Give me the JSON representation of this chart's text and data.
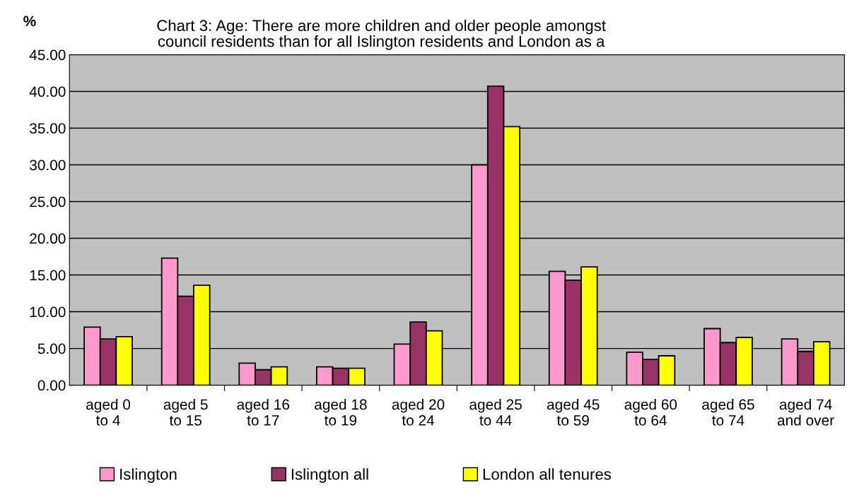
{
  "chart_data": {
    "type": "bar",
    "title": "Chart 3: Age: There are more children and older people amongst\ncouncil residents than for all Islington residents and London as a",
    "ylabel": "%",
    "categories": [
      "aged 0\nto 4",
      "aged 5\nto 15",
      "aged 16\nto 17",
      "aged 18\nto 19",
      "aged 20\nto 24",
      "aged 25\nto 44",
      "aged 45\nto 59",
      "aged 60\nto 64",
      "aged 65\nto 74",
      "aged 74\nand over"
    ],
    "series": [
      {
        "name": "Islington",
        "color": "#ff99cc",
        "values": [
          7.9,
          17.3,
          3.0,
          2.5,
          5.6,
          30.0,
          15.5,
          4.5,
          7.7,
          6.3
        ]
      },
      {
        "name": "Islington all",
        "color": "#993366",
        "values": [
          6.3,
          12.1,
          2.1,
          2.3,
          8.6,
          40.7,
          14.3,
          3.5,
          5.8,
          4.6
        ]
      },
      {
        "name": "London all tenures",
        "color": "#ffff00",
        "values": [
          6.6,
          13.6,
          2.5,
          2.3,
          7.4,
          35.2,
          16.1,
          4.0,
          6.5,
          5.9
        ]
      }
    ],
    "ylim": [
      0,
      45
    ],
    "yticks": [
      {
        "value": 0,
        "label": "0.00"
      },
      {
        "value": 5,
        "label": "5.00"
      },
      {
        "value": 10,
        "label": "10.00"
      },
      {
        "value": 15,
        "label": "15.00"
      },
      {
        "value": 20,
        "label": "20.00"
      },
      {
        "value": 25,
        "label": "25.00"
      },
      {
        "value": 30,
        "label": "30.00"
      },
      {
        "value": 35,
        "label": "35.00"
      },
      {
        "value": 40,
        "label": "40.00"
      },
      {
        "value": 45,
        "label": "45.00"
      }
    ],
    "grid": "y",
    "legend": "bottom"
  }
}
